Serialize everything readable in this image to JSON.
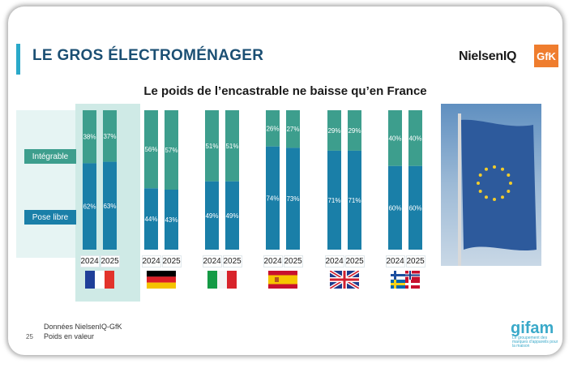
{
  "header": {
    "title": "LE GROS ÉLECTROMÉNAGER",
    "logo_niq": "NielsenIQ",
    "logo_gfk": "GfK"
  },
  "legend": {
    "integrable": "Intégrable",
    "pose_libre": "Pose libre"
  },
  "footer": {
    "source": "Données NielsenIQ-GfK",
    "note": "Poids en valeur",
    "page": "25",
    "logo": "gifam",
    "logo_tagline": "Le groupement des marques d'appareils pour la maison"
  },
  "colors": {
    "integrable": "#3d9e8d",
    "pose_libre": "#1a7fa8",
    "highlight_panel": "#cfeae6",
    "legend_panel": "#e6f4f3",
    "title": "#1b4f73"
  },
  "chart_data": {
    "type": "bar",
    "stacked": true,
    "title": "Le poids de l’encastrable ne baisse qu’en France",
    "unit": "%",
    "x": [
      "2024",
      "2025"
    ],
    "countries": [
      {
        "flag": "france-flag",
        "pose_libre": [
          62,
          63
        ],
        "integrable": [
          38,
          37
        ]
      },
      {
        "flag": "germany-flag",
        "pose_libre": [
          44,
          43
        ],
        "integrable": [
          56,
          57
        ]
      },
      {
        "flag": "italy-flag",
        "pose_libre": [
          49,
          49
        ],
        "integrable": [
          51,
          51
        ]
      },
      {
        "flag": "spain-flag",
        "pose_libre": [
          74,
          73
        ],
        "integrable": [
          26,
          27
        ]
      },
      {
        "flag": "uk-flag",
        "pose_libre": [
          71,
          71
        ],
        "integrable": [
          29,
          29
        ]
      },
      {
        "flag": "nordic-flags",
        "pose_libre": [
          60,
          60
        ],
        "integrable": [
          40,
          40
        ]
      }
    ],
    "series_labels": [
      "Intégrable",
      "Pose libre"
    ],
    "ylim": [
      0,
      100
    ],
    "highlight": "France"
  }
}
